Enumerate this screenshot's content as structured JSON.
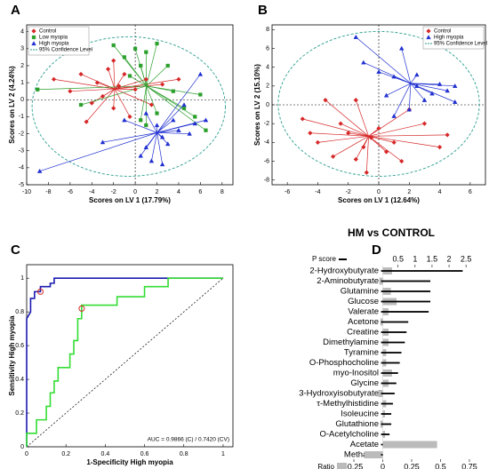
{
  "chart_data": [
    {
      "type": "scatter",
      "label": "A",
      "xlabel": "Scores on LV 1 (17.79%)",
      "ylabel": "Scores on LV 2 (4.24%)",
      "xlim": [
        -10,
        9
      ],
      "ylim": [
        -5,
        4.4
      ],
      "xticks": [
        -10,
        -8,
        -6,
        -4,
        -2,
        0,
        2,
        4,
        6,
        8
      ],
      "yticks": [
        -5,
        -4,
        -3,
        -2,
        -1,
        0,
        1,
        2,
        3,
        4
      ],
      "legend": "upper left",
      "series": [
        {
          "name": "Control",
          "color": "#d62728",
          "marker": "diamond",
          "x": [
            -7.5,
            -6,
            -5,
            -4,
            -3.5,
            -3,
            -2.5,
            -2,
            -1.5,
            -1,
            -0.5,
            0,
            1,
            1.5,
            2.5,
            4,
            -4.5,
            -2
          ],
          "y": [
            1.2,
            0.5,
            1.5,
            -0.2,
            1,
            0.2,
            1.8,
            -0.5,
            0.8,
            1.5,
            -1,
            0.6,
            1.2,
            -0.3,
            0.9,
            1.2,
            -1.3,
            2.3
          ]
        },
        {
          "name": "Low myopia",
          "color": "#2ca02c",
          "marker": "square",
          "x": [
            -9,
            -5,
            -2,
            -1,
            0,
            0.5,
            1,
            2,
            3,
            3.5,
            4.5,
            5.5,
            6,
            6.5,
            1,
            2,
            0.5,
            -0.5
          ],
          "y": [
            0.6,
            -0.3,
            3.2,
            2.5,
            3,
            2,
            2.8,
            3.3,
            2,
            0.5,
            -0.5,
            -1,
            0.3,
            -1.8,
            -1.5,
            -0.8,
            -1.2,
            1.4
          ]
        },
        {
          "name": "High myopia",
          "color": "#1f2fd0",
          "marker": "triangle",
          "x": [
            -8.8,
            -3,
            -1,
            0.5,
            1,
            1.5,
            2,
            2.5,
            3,
            3.5,
            4.5,
            5,
            5.5,
            6,
            1,
            2.5,
            6.5,
            4
          ],
          "y": [
            -4.2,
            -2.5,
            -1.2,
            -3.3,
            -2.8,
            -3.6,
            -1.5,
            -2.2,
            -2.6,
            -1.2,
            -0.3,
            -2,
            -1.4,
            1.5,
            -0.8,
            -3.8,
            -1.2,
            -1.8
          ]
        }
      ],
      "confidence": {
        "name": "95% Confidence Level",
        "color": "#2a9d8f",
        "cx": -0.6,
        "cy": -0.4,
        "rx": 8.9,
        "ry": 4.1
      }
    },
    {
      "type": "scatter",
      "label": "B",
      "xlabel": "Scores on LV 1 (12.64%)",
      "ylabel": "Scores on LV 2 (15.10%)",
      "xlim": [
        -7,
        7
      ],
      "ylim": [
        -8.5,
        8.5
      ],
      "xticks": [
        -6,
        -4,
        -2,
        0,
        2,
        4,
        6
      ],
      "yticks": [
        -8,
        -6,
        -4,
        -2,
        0,
        2,
        4,
        6,
        8
      ],
      "legend": "upper right",
      "series": [
        {
          "name": "Control",
          "color": "#d62728",
          "marker": "diamond",
          "x": [
            -5,
            -4.5,
            -4,
            -3.5,
            -3,
            -2.5,
            -2,
            -1.5,
            -1,
            -0.8,
            -0.5,
            0,
            0.5,
            1,
            1.5,
            2,
            3,
            4.5,
            4,
            -1.5
          ],
          "y": [
            -1.5,
            -3,
            -4,
            0.5,
            -5.5,
            -2,
            -3,
            0.5,
            -4.5,
            -7.2,
            -3.5,
            -2.5,
            -5,
            -4,
            -6,
            -0.5,
            -2,
            -3.2,
            -4.5,
            -5.8
          ]
        },
        {
          "name": "High myopia",
          "color": "#1f2fd0",
          "marker": "triangle",
          "x": [
            -1.5,
            -1,
            0,
            0.5,
            1,
            1.5,
            2,
            2.5,
            3,
            3.5,
            4,
            4.5,
            5,
            5,
            1,
            2.5
          ],
          "y": [
            7.2,
            4.5,
            3.5,
            1,
            3,
            6,
            -0.5,
            2,
            0.5,
            1.2,
            2.2,
            1.5,
            0.3,
            2,
            -1.2,
            3.2
          ]
        }
      ],
      "confidence": {
        "name": "95% Confidence Level",
        "color": "#2a9d8f",
        "cx": 0,
        "cy": 0.1,
        "rx": 6.6,
        "ry": 7.7
      }
    },
    {
      "type": "roc",
      "label": "C",
      "xlabel": "1-Specificity High myopia",
      "ylabel": "Sensitivity High myopia",
      "xlim": [
        0,
        1.05
      ],
      "ylim": [
        0,
        1.08
      ],
      "xticks": [
        0,
        0.2,
        0.4,
        0.6,
        0.8,
        1
      ],
      "yticks": [
        0,
        0.2,
        0.4,
        0.6,
        0.8,
        1
      ],
      "annotation": "AUC = 0.9866 (C) / 0.7420 (CV)",
      "series": [
        {
          "color": "#1a1ab0",
          "x": [
            0,
            0,
            0.02,
            0.02,
            0.04,
            0.04,
            0.07,
            0.07,
            0.12,
            0.12,
            0.14,
            0.14,
            1
          ],
          "y": [
            0,
            0.76,
            0.8,
            0.88,
            0.88,
            0.92,
            0.92,
            0.95,
            0.95,
            0.97,
            0.97,
            1,
            1
          ]
        },
        {
          "color": "#33dd33",
          "x": [
            0,
            0,
            0.05,
            0.05,
            0.1,
            0.1,
            0.12,
            0.12,
            0.14,
            0.14,
            0.16,
            0.16,
            0.22,
            0.22,
            0.24,
            0.24,
            0.26,
            0.26,
            0.28,
            0.28,
            0.46,
            0.46,
            0.6,
            0.6,
            0.72,
            0.72,
            1
          ],
          "y": [
            0,
            0.08,
            0.08,
            0.16,
            0.16,
            0.24,
            0.24,
            0.32,
            0.32,
            0.39,
            0.39,
            0.47,
            0.47,
            0.55,
            0.55,
            0.63,
            0.63,
            0.76,
            0.76,
            0.84,
            0.84,
            0.89,
            0.89,
            0.95,
            0.95,
            1,
            1
          ]
        }
      ],
      "points": {
        "color": "#d62728",
        "x": [
          0.07,
          0.28
        ],
        "y": [
          0.92,
          0.82
        ]
      }
    },
    {
      "type": "hbar",
      "label": "D",
      "title": "HM vs CONTROL",
      "categories": [
        "2-Hydroxybutyrate",
        "2-Aminobutyrate",
        "Glutamine",
        "Glucose",
        "Valerate",
        "Acetone",
        "Creatine",
        "Dimethylamine",
        "Tyramine",
        "O-Phosphocholine",
        "myo-Inositol",
        "Glycine",
        "3-Hydroxyisobutyrate",
        "τ-Methylhistidine",
        "Isoleucine",
        "Glutathione",
        "O-Acetylcholine",
        "Acetate",
        "Methanol"
      ],
      "xlim": [
        -0.25,
        0.75
      ],
      "xticks": [
        -0.25,
        0,
        0.25,
        0.5,
        0.75
      ],
      "x2lim": [
        -0.8,
        2.6
      ],
      "x2ticks": [
        0.5,
        1,
        1.5,
        2,
        2.5
      ],
      "series": [
        {
          "name": "Ratio",
          "color": "#bbbbbb",
          "values": [
            0.08,
            -0.03,
            0.07,
            0.12,
            0.05,
            -0.02,
            0.05,
            0.05,
            0.03,
            0.03,
            0.08,
            0.05,
            -0.04,
            0.03,
            0.02,
            -0.02,
            0.02,
            0.47,
            -0.16
          ]
        },
        {
          "name": "P score",
          "color": "#000000",
          "axis": "x2",
          "values": [
            2.4,
            1.45,
            1.45,
            1.45,
            1.4,
            0.8,
            0.75,
            0.7,
            0.6,
            0.55,
            0.5,
            0.45,
            0.4,
            0.35,
            0.3,
            0.3,
            0.25,
            0.05,
            0.05
          ]
        }
      ]
    }
  ]
}
